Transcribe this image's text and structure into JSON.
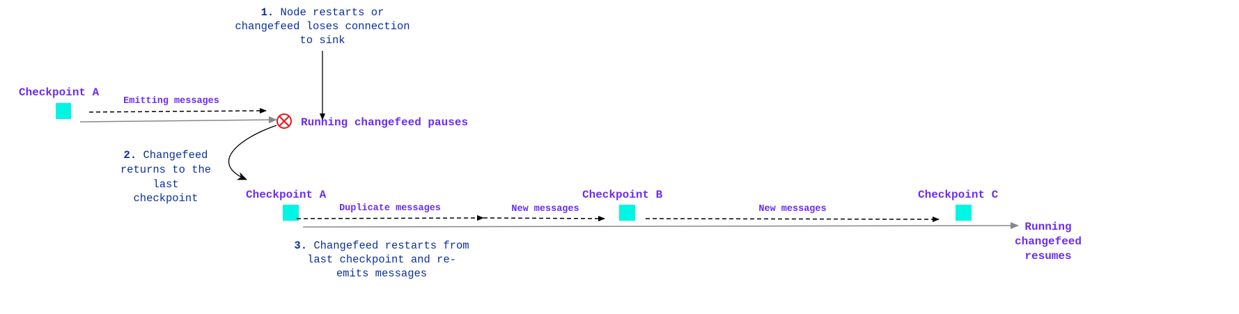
{
  "colors": {
    "checkpoint": "#00f5e4",
    "label": "#6a2cf5",
    "step_text": "#0b2f9e",
    "error": "#e8141c",
    "timeline": "#888888"
  },
  "step1": {
    "number": "1.",
    "lines": [
      "Node restarts or",
      "changefeed loses connection",
      "to sink"
    ]
  },
  "step2": {
    "number": "2.",
    "lines": [
      "Changefeed",
      "returns to the",
      "last",
      "checkpoint"
    ]
  },
  "step3": {
    "number": "3.",
    "lines": [
      "Changefeed restarts from",
      "last checkpoint and re-",
      "emits messages"
    ]
  },
  "top_row": {
    "checkpoint_label": "Checkpoint A",
    "message_label": "Emitting messages",
    "pause_label": "Running changefeed pauses",
    "pause_icon": "x-circle-icon"
  },
  "bottom_row": {
    "checkpoints": [
      "Checkpoint A",
      "Checkpoint B",
      "Checkpoint C"
    ],
    "messages": [
      "Duplicate messages",
      "New messages",
      "New messages"
    ],
    "resume_lines": [
      "Running",
      "changefeed",
      "resumes"
    ]
  }
}
